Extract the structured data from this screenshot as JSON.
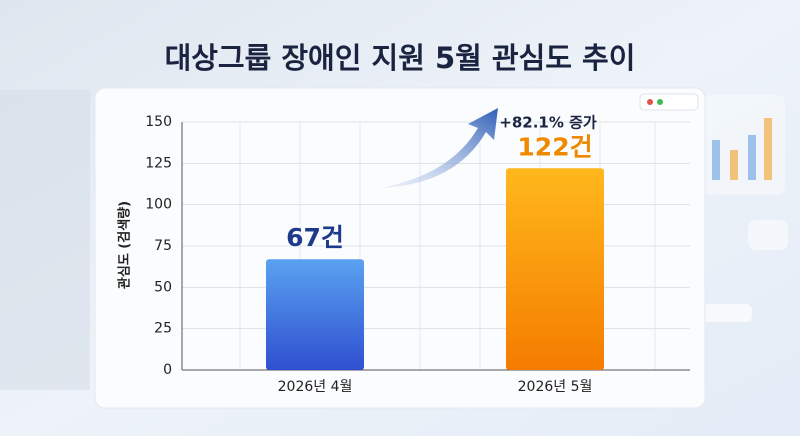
{
  "chart_data": {
    "type": "bar",
    "title": "대상그룹 장애인 지원 5월 관심도 추이",
    "y_label": "관심도 (검색량)",
    "annotation": "+82.1% 증가",
    "categories": [
      "2026년 4월",
      "2026년 5월"
    ],
    "values": [
      67,
      122
    ],
    "value_labels": [
      "67건",
      "122건"
    ],
    "colors": [
      "#3b6fe0",
      "#f7960c"
    ],
    "label_colors": [
      "#1e3a8a",
      "#ef8a00"
    ],
    "ylim": [
      0,
      150
    ],
    "yticks": [
      0,
      25,
      50,
      75,
      100,
      125,
      150
    ],
    "grid": true
  }
}
